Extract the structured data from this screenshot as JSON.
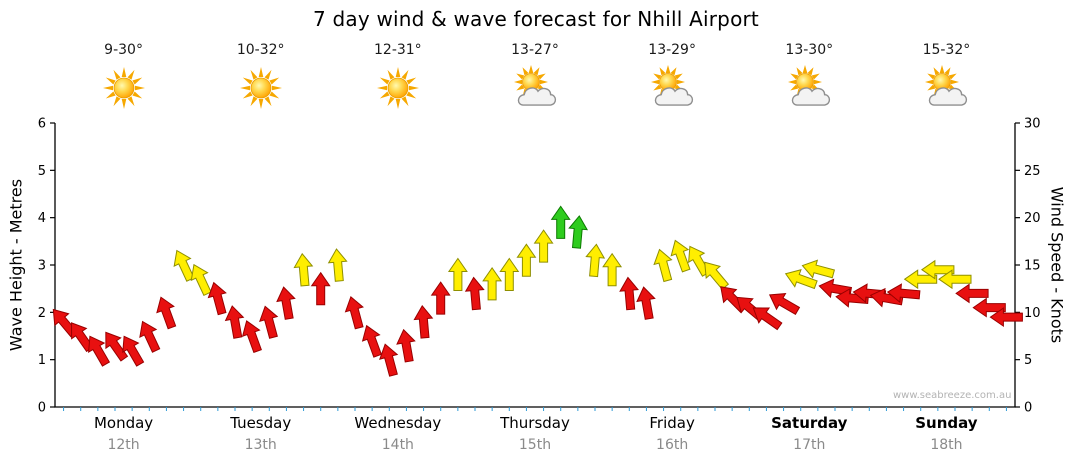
{
  "title": "7 day wind & wave forecast for Nhill Airport",
  "watermark": "www.seabreeze.com.au",
  "axes": {
    "left_title": "Wave Height - Metres",
    "right_title": "Wind Speed - Knots",
    "left_ticks": [
      0,
      1,
      2,
      3,
      4,
      5,
      6
    ],
    "right_ticks": [
      0,
      5,
      10,
      15,
      20,
      25,
      30
    ]
  },
  "days": [
    {
      "temp": "9-30°",
      "icon": "sunny",
      "name": "Monday",
      "date": "12th",
      "weekend": false
    },
    {
      "temp": "10-32°",
      "icon": "sunny",
      "name": "Tuesday",
      "date": "13th",
      "weekend": false
    },
    {
      "temp": "12-31°",
      "icon": "sunny",
      "name": "Wednesday",
      "date": "14th",
      "weekend": false
    },
    {
      "temp": "13-27°",
      "icon": "partly-cloudy",
      "name": "Thursday",
      "date": "15th",
      "weekend": false
    },
    {
      "temp": "13-29°",
      "icon": "partly-cloudy",
      "name": "Friday",
      "date": "16th",
      "weekend": false
    },
    {
      "temp": "13-30°",
      "icon": "partly-cloudy",
      "name": "Saturday",
      "date": "17th",
      "weekend": true
    },
    {
      "temp": "15-32°",
      "icon": "partly-cloudy",
      "name": "Sunday",
      "date": "18th",
      "weekend": true
    }
  ],
  "chart_data": {
    "type": "wind-arrow-timeseries",
    "title": "7 day wind & wave forecast for Nhill Airport",
    "y_left": {
      "label": "Wave Height - Metres",
      "range": [
        0,
        6
      ]
    },
    "y_right": {
      "label": "Wind Speed - Knots",
      "range": [
        0,
        30
      ]
    },
    "points_per_day": 8,
    "interval_hours": 3,
    "color_scale": [
      {
        "min_knots": 0,
        "color": "#e81010",
        "stroke": "#990000"
      },
      {
        "min_knots": 13,
        "color": "#ffee00",
        "stroke": "#8f8f00"
      },
      {
        "min_knots": 18,
        "color": "#2ecc1e",
        "stroke": "#0c7a00"
      }
    ],
    "wind": [
      {
        "day": "Monday",
        "knots": [
          9,
          7.5,
          6,
          6.5,
          6,
          7.5,
          10,
          15
        ],
        "dir_deg": [
          -40,
          -35,
          -30,
          -35,
          -30,
          -25,
          -20,
          -25
        ]
      },
      {
        "day": "Tuesday",
        "knots": [
          13.5,
          11.5,
          9,
          7.5,
          9,
          11,
          14.5,
          12.5
        ],
        "dir_deg": [
          -25,
          -15,
          -10,
          -20,
          -15,
          -10,
          -5,
          0
        ]
      },
      {
        "day": "Wednesday",
        "knots": [
          15,
          10,
          7,
          5,
          6.5,
          9,
          11.5,
          14
        ],
        "dir_deg": [
          -5,
          -15,
          -20,
          -15,
          -10,
          -5,
          0,
          0
        ]
      },
      {
        "day": "Thursday",
        "knots": [
          12,
          13,
          14,
          15.5,
          17,
          19.5,
          18.5,
          15.5
        ],
        "dir_deg": [
          -5,
          0,
          0,
          0,
          0,
          0,
          5,
          5
        ]
      },
      {
        "day": "Friday",
        "knots": [
          14.5,
          12,
          11,
          15,
          16,
          15.5,
          14,
          11.5
        ],
        "dir_deg": [
          0,
          -5,
          -10,
          -15,
          -20,
          -30,
          -40,
          -45
        ]
      },
      {
        "day": "Saturday",
        "knots": [
          10.5,
          9.5,
          11,
          13.5,
          14.5,
          12.5,
          11.5,
          12
        ],
        "dir_deg": [
          -50,
          -55,
          -60,
          -70,
          -75,
          -80,
          -85,
          -85
        ]
      },
      {
        "day": "Sunday",
        "knots": [
          11.5,
          12,
          13.5,
          14.5,
          13.5,
          12,
          10.5,
          9.5
        ],
        "dir_deg": [
          -80,
          -85,
          -90,
          -90,
          -90,
          -90,
          -90,
          -90
        ]
      }
    ]
  }
}
